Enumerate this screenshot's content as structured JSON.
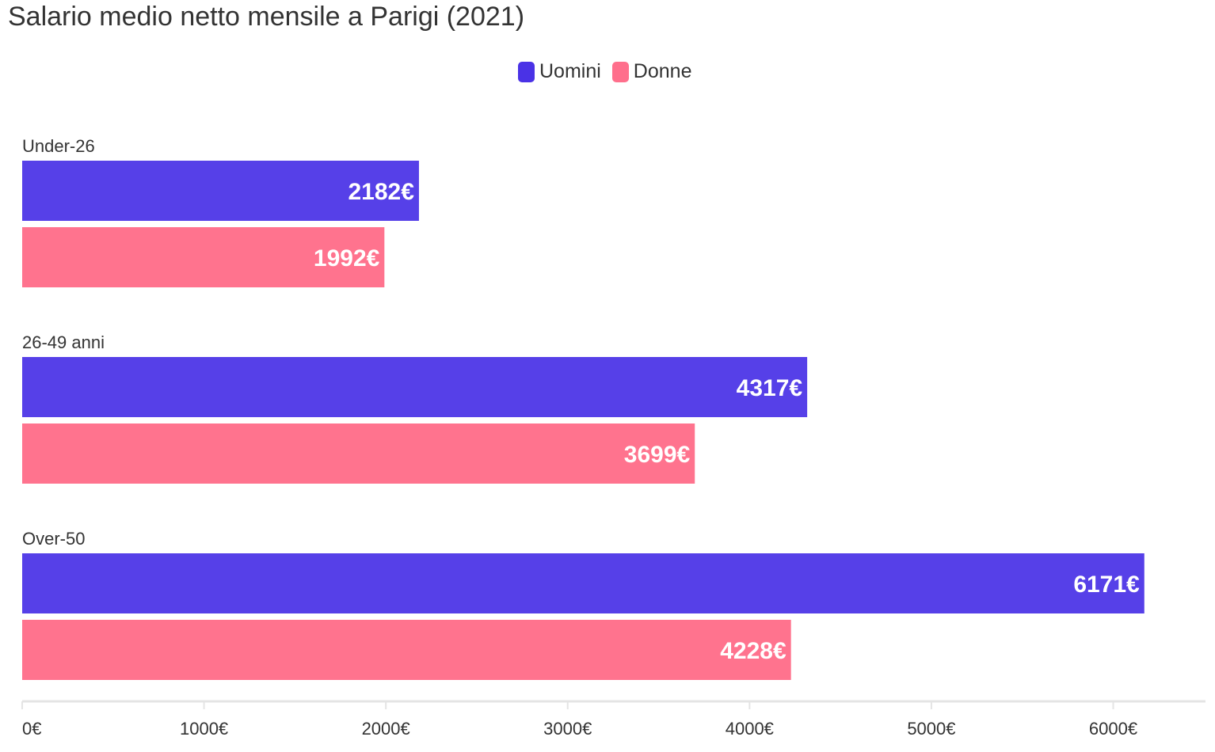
{
  "chart_data": {
    "type": "bar",
    "orientation": "horizontal",
    "title": "Salario medio netto mensile a Parigi (2021)",
    "categories": [
      "Under-26",
      "26-49 anni",
      "Over-50"
    ],
    "series": [
      {
        "name": "Uomini",
        "color": "#5640e8",
        "values": [
          2182,
          4317,
          6171
        ],
        "labels": [
          "2182€",
          "4317€",
          "6171€"
        ]
      },
      {
        "name": "Donne",
        "color": "#ff738e",
        "values": [
          1992,
          3699,
          4228
        ],
        "labels": [
          "1992€",
          "3699€",
          "4228€"
        ]
      }
    ],
    "xlim": [
      0,
      6500
    ],
    "xticks": [
      0,
      1000,
      2000,
      3000,
      4000,
      5000,
      6000
    ],
    "xtick_labels": [
      "0€",
      "1000€",
      "2000€",
      "3000€",
      "4000€",
      "5000€",
      "6000€"
    ],
    "legend_position": "top-center",
    "grid": false
  }
}
